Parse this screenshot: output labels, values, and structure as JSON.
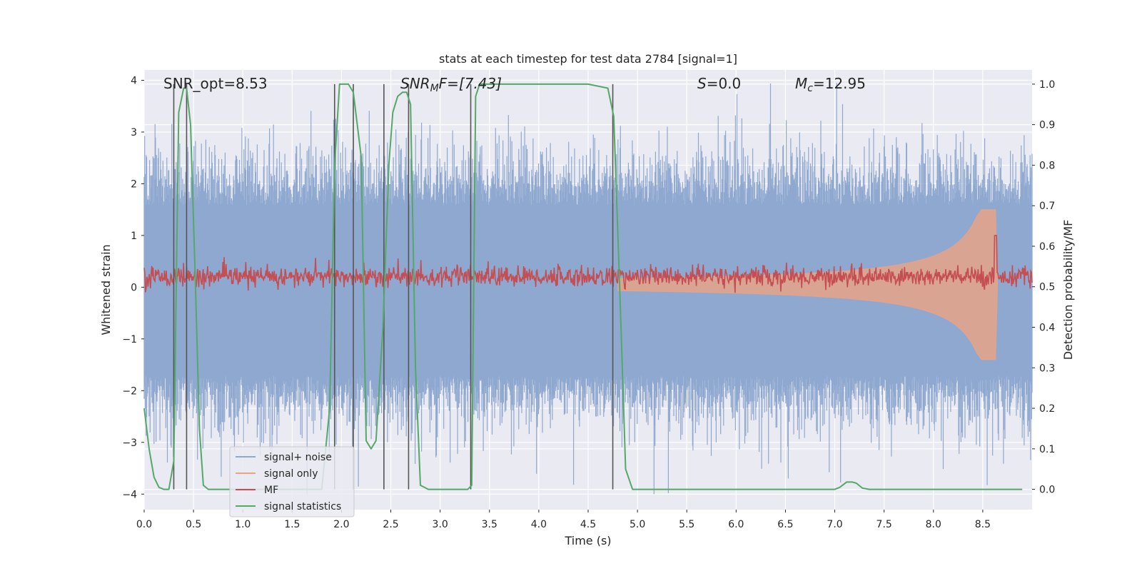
{
  "chart_data": {
    "type": "line",
    "title": "stats at each timestep for test data 2784 [signal=1]",
    "xlabel": "Time (s)",
    "ylabel": "Whitened strain",
    "y2label": "Detection probability/MF",
    "xlim": [
      0,
      9.0
    ],
    "ylim": [
      -4.3,
      4.2
    ],
    "y2lim": [
      -0.05,
      1.035
    ],
    "xticks": [
      0.0,
      0.5,
      1.0,
      1.5,
      2.0,
      2.5,
      3.0,
      3.5,
      4.0,
      4.5,
      5.0,
      5.5,
      6.0,
      6.5,
      7.0,
      7.5,
      8.0,
      8.5
    ],
    "xtick_labels": [
      "0.0",
      "0.5",
      "1.0",
      "1.5",
      "2.0",
      "2.5",
      "3.0",
      "3.5",
      "4.0",
      "4.5",
      "5.0",
      "5.5",
      "6.0",
      "6.5",
      "7.0",
      "7.5",
      "8.0",
      "8.5"
    ],
    "yticks": [
      -4,
      -3,
      -2,
      -1,
      0,
      1,
      2,
      3,
      4
    ],
    "ytick_labels": [
      "−4",
      "−3",
      "−2",
      "−1",
      "0",
      "1",
      "2",
      "3",
      "4"
    ],
    "y2ticks": [
      0.0,
      0.1,
      0.2,
      0.3,
      0.4,
      0.5,
      0.6,
      0.7,
      0.8,
      0.9,
      1.0
    ],
    "y2tick_labels": [
      "0.0",
      "0.1",
      "0.2",
      "0.3",
      "0.4",
      "0.5",
      "0.6",
      "0.7",
      "0.8",
      "0.9",
      "1.0"
    ],
    "annotations": {
      "snr_opt": "SNR_opt=8.53",
      "snr_mf_base": "SNR",
      "snr_mf_sub": "M",
      "snr_mf_rest": "F=[7.43]",
      "s_var": "S",
      "s_rest": "=0.0",
      "mc_var": "M",
      "mc_sub": "c",
      "mc_rest": "=12.95"
    },
    "legend": {
      "position": "lower-left",
      "entries": [
        {
          "name": "signal+ noise",
          "color": "#8fa8d0"
        },
        {
          "name": "signal only",
          "color": "#eca283"
        },
        {
          "name": "MF",
          "color": "#c44e52"
        },
        {
          "name": "signal statistics",
          "color": "#55a868"
        }
      ]
    },
    "series": [
      {
        "name": "signal statistics",
        "axis": "right",
        "color": "#55a868",
        "x": [
          0.0,
          0.05,
          0.1,
          0.15,
          0.2,
          0.25,
          0.3,
          0.35,
          0.4,
          0.43,
          0.47,
          0.52,
          0.56,
          0.6,
          0.65,
          0.7,
          0.8,
          1.0,
          1.5,
          1.8,
          1.88,
          1.93,
          1.98,
          2.02,
          2.07,
          2.12,
          2.2,
          2.25,
          2.3,
          2.35,
          2.42,
          2.48,
          2.52,
          2.57,
          2.62,
          2.66,
          2.7,
          2.75,
          2.8,
          2.88,
          3.0,
          3.1,
          3.2,
          3.28,
          3.32,
          3.36,
          3.4,
          3.6,
          4.0,
          4.5,
          4.7,
          4.76,
          4.82,
          4.88,
          4.95,
          5.0,
          5.5,
          6.0,
          6.5,
          7.0,
          7.05,
          7.12,
          7.18,
          7.22,
          7.28,
          7.35,
          7.5,
          8.0,
          8.5,
          8.9
        ],
        "values": [
          0.2,
          0.1,
          0.03,
          0.005,
          0.0,
          0.0,
          0.07,
          0.93,
          0.99,
          0.99,
          0.9,
          0.5,
          0.15,
          0.01,
          0.0,
          0.0,
          0.0,
          0.0,
          0.0,
          0.0,
          0.2,
          0.8,
          1.0,
          1.0,
          1.0,
          0.98,
          0.82,
          0.12,
          0.1,
          0.12,
          0.4,
          0.8,
          0.93,
          0.97,
          0.98,
          0.98,
          0.95,
          0.3,
          0.01,
          0.0,
          0.0,
          0.0,
          0.0,
          0.0,
          0.01,
          0.97,
          1.0,
          1.0,
          1.0,
          1.0,
          0.99,
          0.92,
          0.5,
          0.05,
          0.0,
          0.0,
          0.0,
          0.0,
          0.0,
          0.0,
          0.005,
          0.018,
          0.018,
          0.015,
          0.003,
          0.0,
          0.0,
          0.0,
          0.0,
          0.0
        ]
      }
    ],
    "vertical_lines": [
      0.3,
      0.43,
      1.93,
      2.12,
      2.43,
      2.68,
      3.31,
      4.75
    ],
    "noise_series": {
      "name": "signal+ noise",
      "color": "#8fa8d0",
      "typical_range": [
        -2.0,
        2.2
      ],
      "peak_range": [
        -4.0,
        4.0
      ]
    },
    "signal_only_series": {
      "name": "signal only",
      "color": "#eca283",
      "merger_time": 8.63,
      "peak_amplitude": 1.45
    },
    "mf_series": {
      "name": "MF",
      "color": "#c44e52",
      "center": 0.2,
      "spread": 0.3,
      "merger_time": 8.63,
      "merger_peak": 1.0
    }
  },
  "colors": {
    "plot_bg": "#eaeaf2",
    "grid": "#ffffff",
    "text": "#262626"
  }
}
